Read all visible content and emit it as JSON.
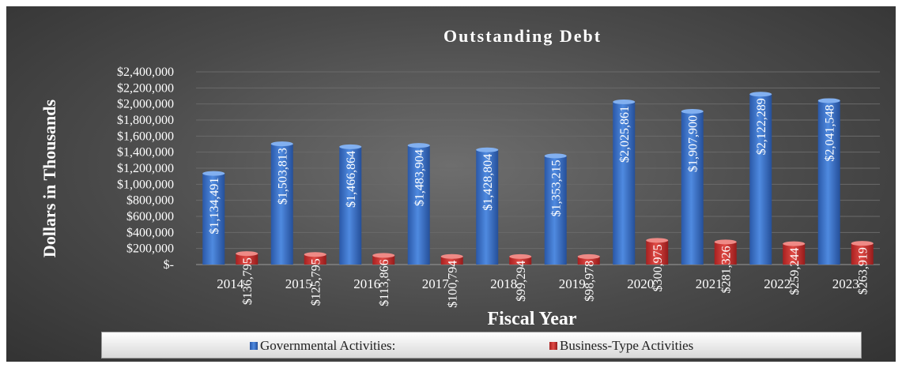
{
  "chart_data": {
    "type": "bar",
    "title": "Outstanding Debt",
    "xlabel": "Fiscal Year",
    "ylabel": "Dollars in Thousands",
    "categories": [
      "2014",
      "2015",
      "2016",
      "2017",
      "2018",
      "2019",
      "2020",
      "2021",
      "2022",
      "2023"
    ],
    "ylim": [
      0,
      2400000
    ],
    "yticks": [
      0,
      200000,
      400000,
      600000,
      800000,
      1000000,
      1200000,
      1400000,
      1600000,
      1800000,
      2000000,
      2200000,
      2400000
    ],
    "ytick_labels": [
      "$-",
      "$200,000",
      "$400,000",
      "$600,000",
      "$800,000",
      "$1,000,000",
      "$1,200,000",
      "$1,400,000",
      "$1,600,000",
      "$1,800,000",
      "$2,000,000",
      "$2,200,000",
      "$2,400,000"
    ],
    "grid": true,
    "legend_position": "bottom",
    "series": [
      {
        "name": "Governmental Activities:",
        "color": "#3c74c7",
        "values": [
          1134491,
          1503813,
          1466864,
          1483904,
          1428804,
          1353215,
          2025861,
          1907900,
          2122289,
          2041548
        ],
        "labels": [
          "$1,134,491",
          "$1,503,813",
          "$1,466,864",
          "$1,483,904",
          "$1,428,804",
          "$1,353,215",
          "$2,025,861",
          "$1,907,900",
          "$2,122,289",
          "$2,041,548"
        ]
      },
      {
        "name": "Business-Type Activities",
        "color": "#c8302e",
        "values": [
          136795,
          125795,
          113866,
          100794,
          99294,
          98978,
          300975,
          281326,
          259244,
          263919
        ],
        "labels": [
          "$136,795",
          "$125,795",
          "$113,866",
          "$100,794",
          "$99,294",
          "$98,978",
          "$300,975",
          "$281,326",
          "$259,244",
          "$263,919"
        ]
      }
    ]
  }
}
